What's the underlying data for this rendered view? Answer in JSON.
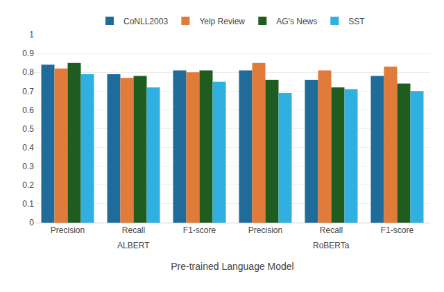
{
  "chart_data": {
    "type": "bar",
    "xlabel": "Pre-trained Language Model",
    "categories": [
      "Precision",
      "Recall",
      "F1-score",
      "Precision",
      "Recall",
      "F1-score"
    ],
    "series": [
      {
        "name": "CoNLL2003",
        "color": "#1f6b9a",
        "values": [
          0.84,
          0.79,
          0.81,
          0.81,
          0.76,
          0.78
        ]
      },
      {
        "name": "Yelp Review",
        "color": "#e07b39",
        "values": [
          0.82,
          0.77,
          0.8,
          0.85,
          0.81,
          0.83
        ]
      },
      {
        "name": "AG's News",
        "color": "#1f5c1f",
        "values": [
          0.85,
          0.78,
          0.81,
          0.76,
          0.72,
          0.74
        ]
      },
      {
        "name": "SST",
        "color": "#30b0e0",
        "values": [
          0.79,
          0.72,
          0.75,
          0.69,
          0.71,
          0.7
        ]
      }
    ],
    "annotations": [
      {
        "text": "ALBERT",
        "x": 1
      },
      {
        "text": "RoBERTa",
        "x": 4
      }
    ],
    "ylim": [
      0,
      1.0
    ],
    "yticks": [
      0,
      0.1,
      0.2,
      0.3,
      0.4,
      0.5,
      0.6,
      0.7,
      0.8,
      0.9,
      1
    ],
    "grid": true,
    "legend": "top"
  }
}
